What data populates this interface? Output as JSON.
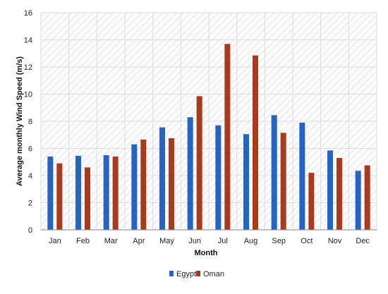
{
  "chart_data": {
    "type": "bar",
    "title": "",
    "xlabel": "Month",
    "ylabel": "Average monthly Wind Speed (m/s)",
    "categories": [
      "Jan",
      "Feb",
      "Mar",
      "Apr",
      "May",
      "Jun",
      "Jul",
      "Aug",
      "Sep",
      "Oct",
      "Nov",
      "Dec"
    ],
    "series": [
      {
        "name": "Egypt",
        "color": "#2563c4",
        "values": [
          5.4,
          5.45,
          5.5,
          6.3,
          7.55,
          8.3,
          7.7,
          7.05,
          8.45,
          7.9,
          5.85,
          4.35
        ]
      },
      {
        "name": "Oman",
        "color": "#a93a1c",
        "values": [
          4.9,
          4.6,
          5.4,
          6.65,
          6.75,
          9.85,
          13.7,
          12.85,
          7.15,
          4.2,
          5.3,
          4.75
        ]
      }
    ],
    "ylim": [
      0,
      16
    ],
    "yticks": [
      "0",
      "2",
      "4",
      "6",
      "8",
      "10",
      "12",
      "14",
      "16"
    ],
    "grid": true,
    "legend_position": "bottom"
  }
}
